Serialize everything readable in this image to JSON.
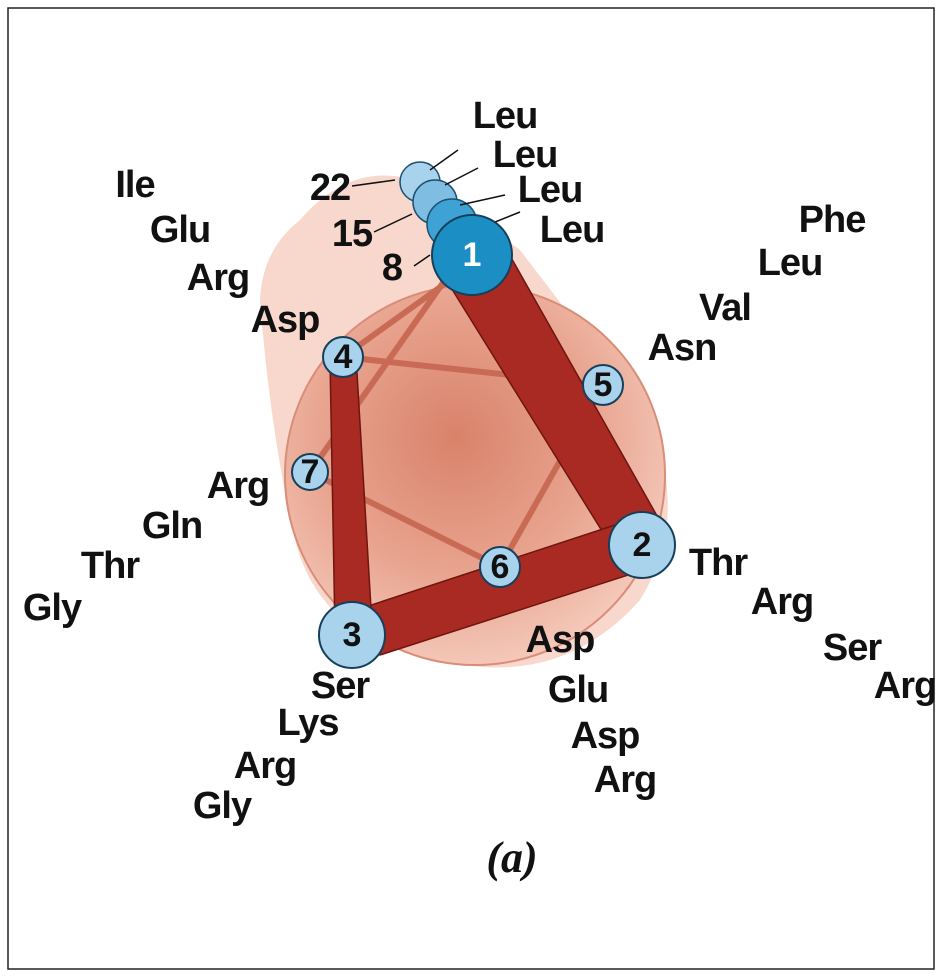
{
  "positions": [
    {
      "number": "1",
      "residues": [
        "Leu",
        "Leu",
        "Leu",
        "Leu"
      ]
    },
    {
      "number": "2",
      "residues": [
        "Thr",
        "Arg",
        "Ser",
        "Arg"
      ]
    },
    {
      "number": "3",
      "residues": [
        "Ser",
        "Lys",
        "Arg",
        "Gly"
      ]
    },
    {
      "number": "4",
      "residues": [
        "Asp",
        "Arg",
        "Glu",
        "Ile"
      ]
    },
    {
      "number": "5",
      "residues": [
        "Asn",
        "Val",
        "Leu",
        "Phe"
      ]
    },
    {
      "number": "6",
      "residues": [
        "Asp",
        "Glu",
        "Asp",
        "Arg"
      ]
    },
    {
      "number": "7",
      "residues": [
        "Arg",
        "Gln",
        "Thr",
        "Gly"
      ]
    }
  ],
  "stack_labels": [
    "22",
    "15",
    "8"
  ],
  "caption": "(a)"
}
